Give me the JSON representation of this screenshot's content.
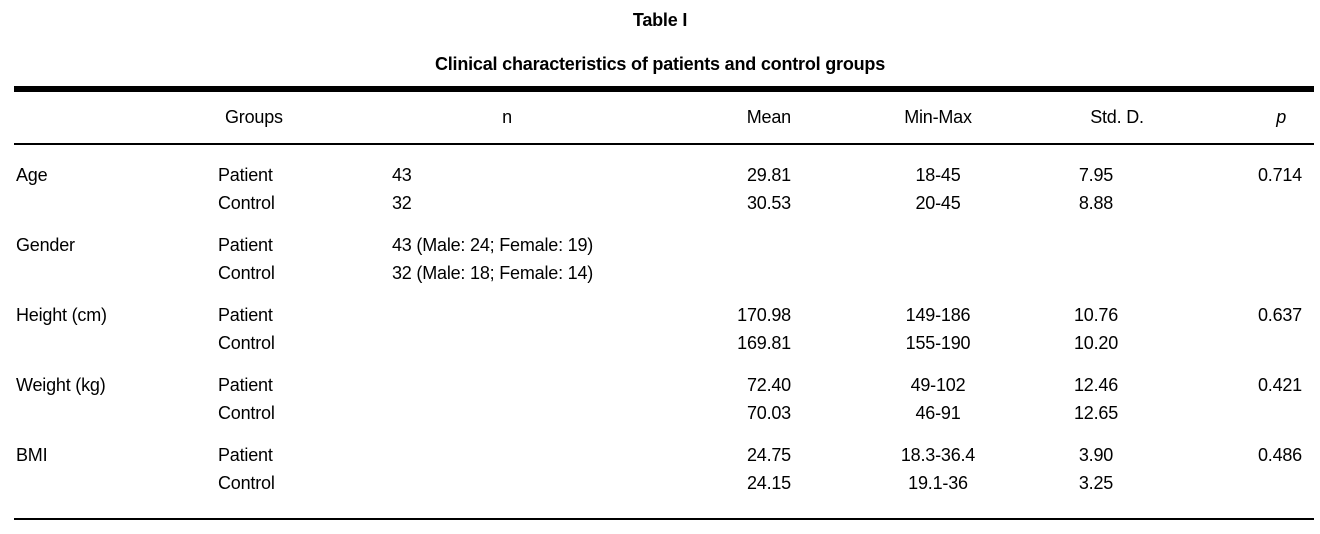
{
  "page": {
    "background_color": "#ffffff",
    "text_color": "#000000"
  },
  "table": {
    "label": "Table I",
    "title": "Clinical characteristics of patients and control groups",
    "columns": {
      "measure": "",
      "groups": "Groups",
      "n": "n",
      "mean": "Mean",
      "min_max": "Min-Max",
      "std": "Std. D.",
      "p": "p"
    },
    "rows": [
      {
        "measure": "Age",
        "group": "Patient",
        "n": "43",
        "mean": "29.81",
        "min_max": "18-45",
        "std": "7.95",
        "p": "0.714",
        "group_start": true
      },
      {
        "measure": "",
        "group": "Control",
        "n": "32",
        "mean": "30.53",
        "min_max": "20-45",
        "std": "8.88",
        "p": "",
        "group_start": false
      },
      {
        "measure": "Gender",
        "group": "Patient",
        "n": "43 (Male: 24; Female: 19)",
        "mean": "",
        "min_max": "",
        "std": "",
        "p": "",
        "group_start": true
      },
      {
        "measure": "",
        "group": "Control",
        "n": "32 (Male: 18; Female: 14)",
        "mean": "",
        "min_max": "",
        "std": "",
        "p": "",
        "group_start": false
      },
      {
        "measure": "Height (cm)",
        "group": "Patient",
        "n": "",
        "mean": "170.98",
        "min_max": "149-186",
        "std": "10.76",
        "p": "0.637",
        "group_start": true
      },
      {
        "measure": "",
        "group": "Control",
        "n": "",
        "mean": "169.81",
        "min_max": "155-190",
        "std": "10.20",
        "p": "",
        "group_start": false
      },
      {
        "measure": "Weight (kg)",
        "group": "Patient",
        "n": "",
        "mean": "72.40",
        "min_max": "49-102",
        "std": "12.46",
        "p": "0.421",
        "group_start": true
      },
      {
        "measure": "",
        "group": "Control",
        "n": "",
        "mean": "70.03",
        "min_max": "46-91",
        "std": "12.65",
        "p": "",
        "group_start": false
      },
      {
        "measure": "BMI",
        "group": "Patient",
        "n": "",
        "mean": "24.75",
        "min_max": "18.3-36.4",
        "std": "3.90",
        "p": "0.486",
        "group_start": true
      },
      {
        "measure": "",
        "group": "Control",
        "n": "",
        "mean": "24.15",
        "min_max": "19.1-36",
        "std": "3.25",
        "p": "",
        "group_start": false
      }
    ]
  }
}
